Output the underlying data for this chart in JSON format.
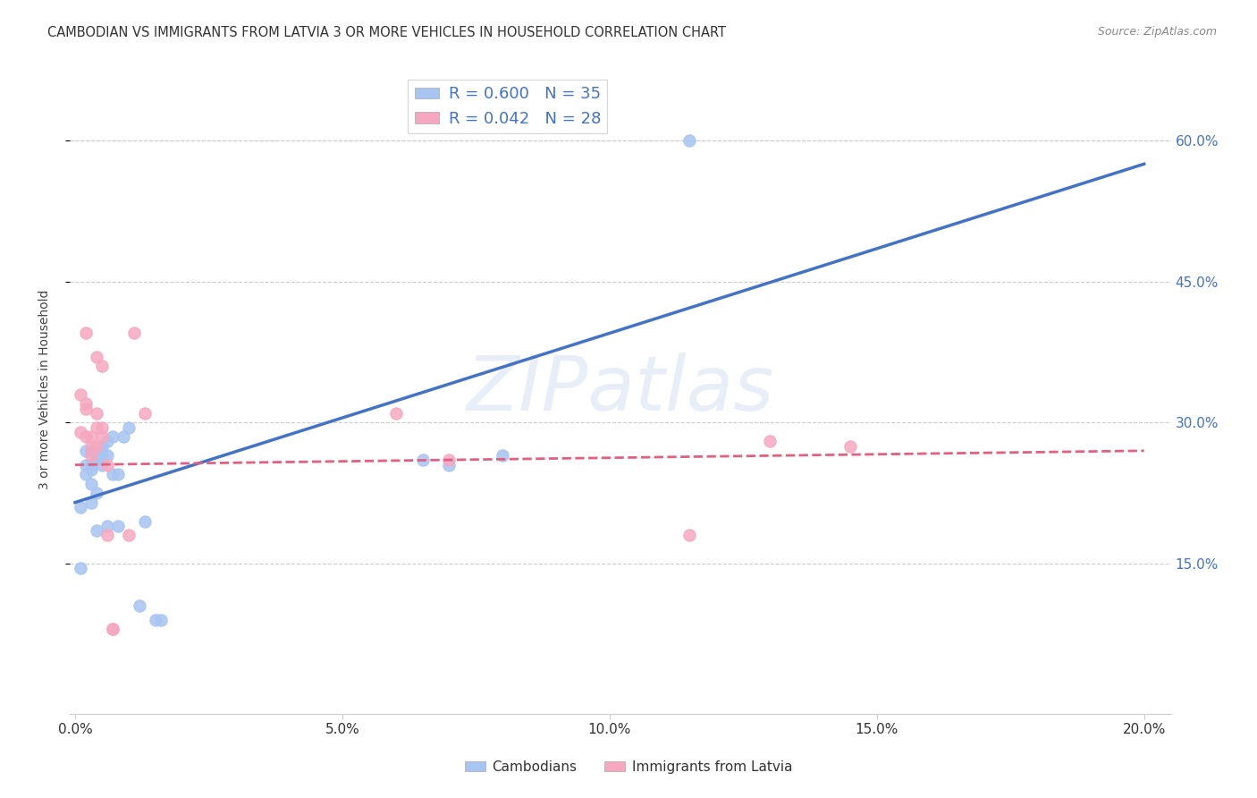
{
  "title": "CAMBODIAN VS IMMIGRANTS FROM LATVIA 3 OR MORE VEHICLES IN HOUSEHOLD CORRELATION CHART",
  "source": "Source: ZipAtlas.com",
  "xlabel_ticks": [
    "0.0%",
    "5.0%",
    "10.0%",
    "15.0%",
    "20.0%"
  ],
  "xlabel_tick_vals": [
    0.0,
    0.05,
    0.1,
    0.15,
    0.2
  ],
  "ylabel": "3 or more Vehicles in Household",
  "ylabel_ticks": [
    "15.0%",
    "30.0%",
    "45.0%",
    "60.0%"
  ],
  "ylabel_tick_vals": [
    0.15,
    0.3,
    0.45,
    0.6
  ],
  "legend_label1": "Cambodians",
  "legend_label2": "Immigrants from Latvia",
  "R1": 0.6,
  "N1": 35,
  "R2": 0.042,
  "N2": 28,
  "blue_color": "#A8C4F0",
  "pink_color": "#F5A8C0",
  "blue_line_color": "#4472C4",
  "pink_line_color": "#E06080",
  "blue_scatter": [
    [
      0.001,
      0.145
    ],
    [
      0.001,
      0.21
    ],
    [
      0.002,
      0.27
    ],
    [
      0.002,
      0.255
    ],
    [
      0.002,
      0.245
    ],
    [
      0.003,
      0.235
    ],
    [
      0.003,
      0.25
    ],
    [
      0.003,
      0.255
    ],
    [
      0.003,
      0.27
    ],
    [
      0.003,
      0.215
    ],
    [
      0.004,
      0.265
    ],
    [
      0.004,
      0.26
    ],
    [
      0.004,
      0.225
    ],
    [
      0.004,
      0.185
    ],
    [
      0.005,
      0.27
    ],
    [
      0.005,
      0.255
    ],
    [
      0.005,
      0.265
    ],
    [
      0.005,
      0.275
    ],
    [
      0.006,
      0.28
    ],
    [
      0.006,
      0.265
    ],
    [
      0.006,
      0.19
    ],
    [
      0.007,
      0.285
    ],
    [
      0.007,
      0.245
    ],
    [
      0.008,
      0.245
    ],
    [
      0.008,
      0.19
    ],
    [
      0.009,
      0.285
    ],
    [
      0.01,
      0.295
    ],
    [
      0.012,
      0.105
    ],
    [
      0.013,
      0.195
    ],
    [
      0.015,
      0.09
    ],
    [
      0.016,
      0.09
    ],
    [
      0.065,
      0.26
    ],
    [
      0.07,
      0.255
    ],
    [
      0.08,
      0.265
    ],
    [
      0.115,
      0.6
    ]
  ],
  "pink_scatter": [
    [
      0.001,
      0.33
    ],
    [
      0.001,
      0.29
    ],
    [
      0.002,
      0.285
    ],
    [
      0.002,
      0.395
    ],
    [
      0.002,
      0.32
    ],
    [
      0.002,
      0.315
    ],
    [
      0.003,
      0.285
    ],
    [
      0.003,
      0.275
    ],
    [
      0.003,
      0.265
    ],
    [
      0.004,
      0.295
    ],
    [
      0.004,
      0.275
    ],
    [
      0.004,
      0.37
    ],
    [
      0.004,
      0.31
    ],
    [
      0.005,
      0.285
    ],
    [
      0.005,
      0.36
    ],
    [
      0.005,
      0.295
    ],
    [
      0.006,
      0.255
    ],
    [
      0.006,
      0.18
    ],
    [
      0.007,
      0.08
    ],
    [
      0.007,
      0.08
    ],
    [
      0.01,
      0.18
    ],
    [
      0.011,
      0.395
    ],
    [
      0.013,
      0.31
    ],
    [
      0.06,
      0.31
    ],
    [
      0.07,
      0.26
    ],
    [
      0.115,
      0.18
    ],
    [
      0.13,
      0.28
    ],
    [
      0.145,
      0.275
    ]
  ],
  "blue_line": [
    [
      0.0,
      0.215
    ],
    [
      0.2,
      0.575
    ]
  ],
  "pink_line": [
    [
      0.0,
      0.255
    ],
    [
      0.2,
      0.27
    ]
  ],
  "xlim": [
    -0.001,
    0.205
  ],
  "ylim": [
    -0.01,
    0.68
  ],
  "watermark": "ZIPatlas",
  "background_color": "#FFFFFF",
  "grid_color": "#CCCCCC"
}
